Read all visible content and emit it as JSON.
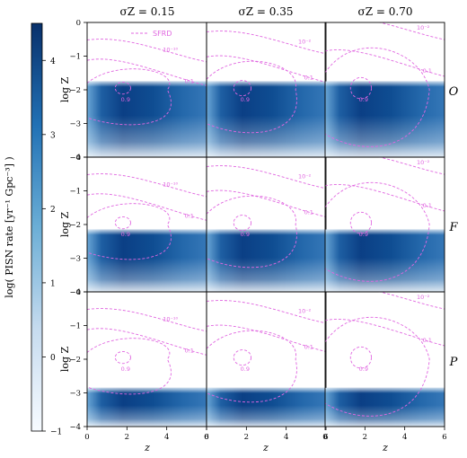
{
  "chart_data": {
    "type": "heatmap",
    "colorbar": {
      "label": "log( PISN rate [yr⁻¹ Gpc⁻³] )",
      "range": [
        -1,
        4.5
      ],
      "ticks": [
        "−1",
        "0",
        "1",
        "2",
        "3",
        "4"
      ],
      "colormap": [
        "#f7fbff",
        "#c6dbef",
        "#6baed6",
        "#2171b5",
        "#08306b"
      ]
    },
    "columns": [
      {
        "title": "σZ = 0.15",
        "sigma": 0.15
      },
      {
        "title": "σZ = 0.35",
        "sigma": 0.35
      },
      {
        "title": "σZ = 0.70",
        "sigma": 0.7
      }
    ],
    "rows": [
      {
        "label": "O",
        "logZ_threshold": -1.75
      },
      {
        "label": "F",
        "logZ_threshold": -2.15
      },
      {
        "label": "P",
        "logZ_threshold": -2.85
      }
    ],
    "xlabel": "z",
    "ylabel": "log Z",
    "xlim": [
      0,
      6
    ],
    "ylim": [
      -4,
      0
    ],
    "xticks": [
      "0",
      "2",
      "4",
      "6"
    ],
    "yticks": [
      "0",
      "−1",
      "−2",
      "−3",
      "−4"
    ],
    "contour_color": "#e066e0",
    "legend_label": "SFRD",
    "contour_levels": [
      "10⁻¹⁰",
      "10⁻²",
      "10⁻²",
      "0.1",
      "0.1",
      "0.1",
      "0.9",
      "0.9",
      "0.9"
    ]
  }
}
